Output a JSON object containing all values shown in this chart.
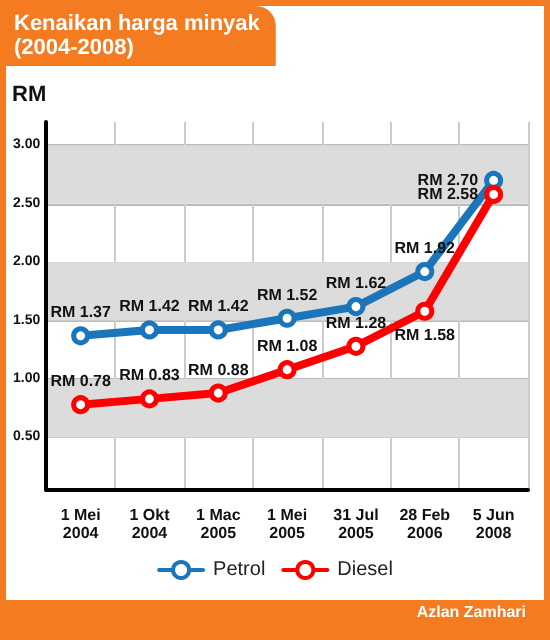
{
  "chart_data": {
    "type": "line",
    "title": "Kenaikan harga minyak\n(2004-2008)",
    "ylabel": "RM",
    "categories": [
      "1 Mei\n2004",
      "1 Okt\n2004",
      "1 Mac\n2005",
      "1 Mei\n2005",
      "31 Jul\n2005",
      "28 Feb\n2006",
      "5 Jun\n2008"
    ],
    "series": [
      {
        "name": "Petrol",
        "color": "#1a75bb",
        "values": [
          1.37,
          1.42,
          1.42,
          1.52,
          1.62,
          1.92,
          2.7
        ],
        "value_labels": [
          "RM 1.37",
          "RM 1.42",
          "RM 1.42",
          "RM 1.52",
          "RM 1.62",
          "RM 1.92",
          "RM 2.70"
        ]
      },
      {
        "name": "Diesel",
        "color": "#ff0000",
        "values": [
          0.78,
          0.83,
          0.88,
          1.08,
          1.28,
          1.58,
          2.58
        ],
        "value_labels": [
          "RM 0.78",
          "RM 0.83",
          "RM 0.88",
          "RM 1.08",
          "RM 1.28",
          "RM 1.58",
          "RM 2.58"
        ]
      }
    ],
    "ylim": [
      0.05,
      3.2
    ],
    "yticks": [
      {
        "value": 0.5,
        "label": "0.50"
      },
      {
        "value": 1,
        "label": "1.00"
      },
      {
        "value": 1.5,
        "label": "1.50"
      },
      {
        "value": 2,
        "label": "2.00"
      },
      {
        "value": 2.5,
        "label": "2.50"
      },
      {
        "value": 3,
        "label": "3.00"
      }
    ],
    "bands": [
      {
        "axis": "y",
        "from": 0.5,
        "to": 1,
        "color": "#dcdcdc"
      },
      {
        "axis": "y",
        "from": 1.5,
        "to": 2,
        "color": "#dcdcdc"
      },
      {
        "axis": "y",
        "from": 2.5,
        "to": 3,
        "color": "#dcdcdc"
      }
    ],
    "grid": true,
    "legend": "bottom",
    "marker": "circle",
    "line_style": "solid",
    "annotations": [
      "Azlan Zamhari"
    ]
  }
}
